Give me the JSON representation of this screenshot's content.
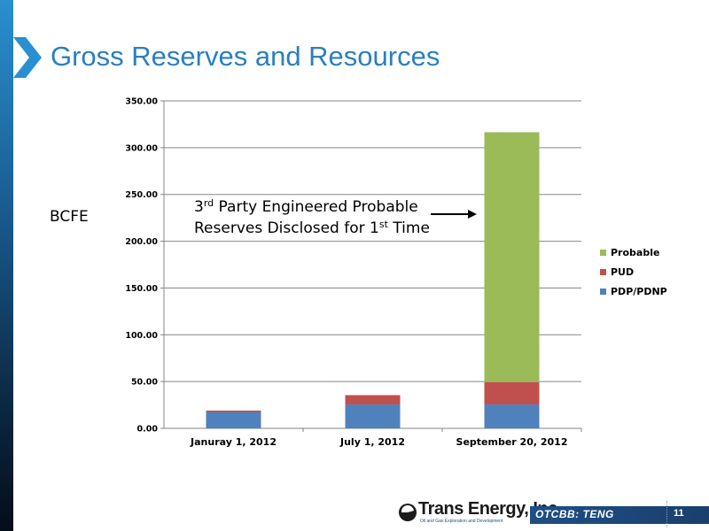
{
  "slide": {
    "title": "Gross Reserves and Resources",
    "y_unit_label": "BCFE",
    "annotation": {
      "line1_pre": "3",
      "line1_sup": "rd",
      "line1_post": " Party Engineered Probable",
      "line2_pre": "Reserves Disclosed for 1",
      "line2_sup": "st",
      "line2_post": " Time"
    },
    "footer": {
      "logo_text": "Trans Energy, Inc.",
      "logo_tagline": "Oil and Gas Exploration and Development",
      "ticker": "OTCBB: TENG",
      "page_number": "11"
    },
    "colors": {
      "title": "#2a7fc1",
      "accent_dark": "#1e4f85"
    }
  },
  "chart_data": {
    "type": "bar",
    "stacked": true,
    "categories": [
      "Januray 1, 2012",
      "July 1, 2012",
      "September 20, 2012"
    ],
    "series": [
      {
        "name": "PDP/PDNP",
        "color": "#4f81bd",
        "values": [
          17.5,
          25.5,
          25.5
        ]
      },
      {
        "name": "PUD",
        "color": "#c0504d",
        "values": [
          1.5,
          10.0,
          24.0
        ]
      },
      {
        "name": "Probable",
        "color": "#9bbb59",
        "values": [
          0,
          0,
          267.0
        ]
      }
    ],
    "ylim": [
      0,
      350
    ],
    "ytick_labels": [
      "0.00",
      "50.00",
      "100.00",
      "150.00",
      "200.00",
      "250.00",
      "300.00",
      "350.00"
    ],
    "ytick_values": [
      0,
      50,
      100,
      150,
      200,
      250,
      300,
      350
    ],
    "grid": true,
    "legend_position": "right"
  }
}
